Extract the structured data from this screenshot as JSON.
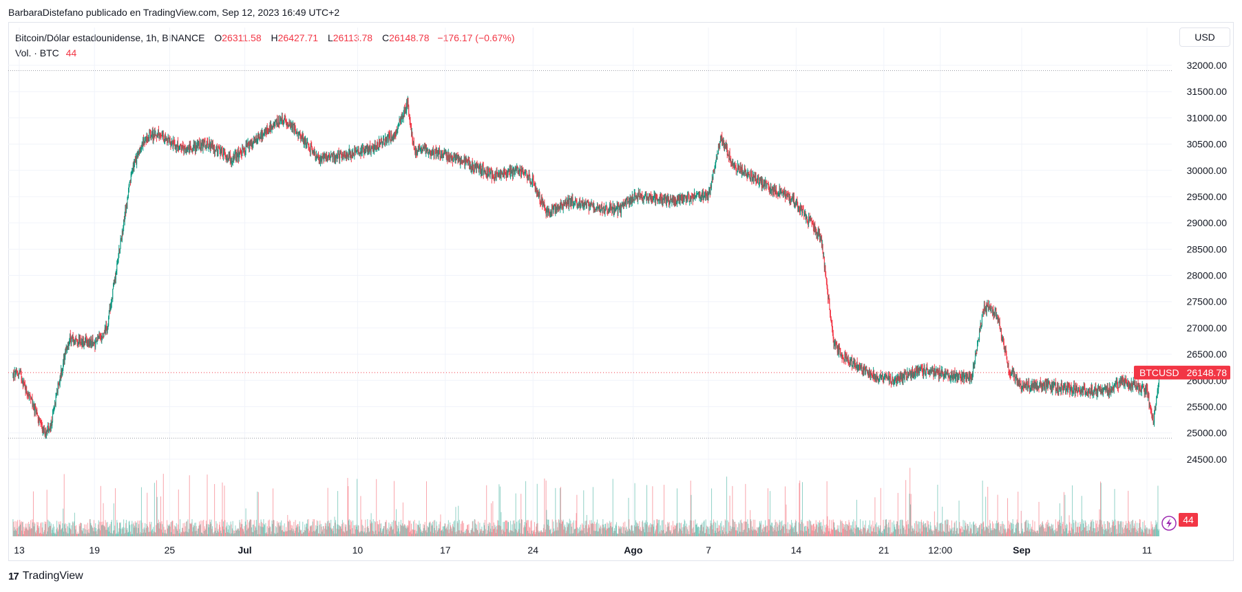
{
  "publisher_line": "BarbaraDistefano publicado en TradingView.com, Sep 12, 2023 16:49 UTC+2",
  "legend": {
    "symbol": "Bitcoin/Dólar estadounidense, 1h, BINANCE",
    "open_label": "O",
    "open": "26311.58",
    "high_label": "H",
    "high": "26427.71",
    "low_label": "L",
    "low": "26113.78",
    "close_label": "C",
    "close": "26148.78",
    "change": "−176.17 (−0.67%)",
    "volume_label": "Vol. · BTC",
    "volume": "44"
  },
  "currency_button": "USD",
  "price_badge": {
    "symbol": "BTCUSD",
    "price": "26148.78"
  },
  "volume_badge": "44",
  "footer_brand": "TradingView",
  "colors": {
    "up": "#089981",
    "down": "#f23645",
    "grid": "#f0f3fa",
    "text": "#131722"
  },
  "chart_data": {
    "type": "candlestick",
    "interval": "1h",
    "y_axis_ticks": [
      32000,
      31500,
      31000,
      30500,
      30000,
      29500,
      29000,
      28500,
      28000,
      27500,
      27000,
      26500,
      26000,
      25500,
      25000,
      24500
    ],
    "y_tick_labels": [
      "32000.00",
      "31500.00",
      "31000.00",
      "30500.00",
      "30000.00",
      "29500.00",
      "29000.00",
      "28500.00",
      "28000.00",
      "27500.00",
      "27000.00",
      "26500.00",
      "26000.00",
      "25500.00",
      "25000.00",
      "24500.00"
    ],
    "ylim": [
      24300,
      32200
    ],
    "x_tick_labels": [
      "13",
      "19",
      "25",
      "Jul",
      "10",
      "17",
      "24",
      "Ago",
      "7",
      "14",
      "21",
      "12:00",
      "Sep",
      "11"
    ],
    "x_tick_bold": [
      false,
      false,
      false,
      true,
      false,
      false,
      false,
      true,
      false,
      false,
      false,
      false,
      true,
      false
    ],
    "x_tick_dates": [
      "2023-06-13",
      "2023-06-19",
      "2023-06-25",
      "2023-07-01",
      "2023-07-10",
      "2023-07-17",
      "2023-07-24",
      "2023-08-01",
      "2023-08-07",
      "2023-08-14",
      "2023-08-21",
      "2023-08-25 12:00",
      "2023-09-01",
      "2023-09-11"
    ],
    "last_close": 26148.78,
    "path_dates": [
      "2023-06-10",
      "2023-06-12",
      "2023-06-13",
      "2023-06-15",
      "2023-06-15 12:00",
      "2023-06-16",
      "2023-06-17",
      "2023-06-19",
      "2023-06-20",
      "2023-06-21",
      "2023-06-22",
      "2023-06-23",
      "2023-06-24",
      "2023-06-26",
      "2023-06-28",
      "2023-06-30",
      "2023-07-02",
      "2023-07-04",
      "2023-07-06",
      "2023-07-07",
      "2023-07-09",
      "2023-07-11",
      "2023-07-13",
      "2023-07-14",
      "2023-07-14 12:00",
      "2023-07-17",
      "2023-07-19",
      "2023-07-21",
      "2023-07-23",
      "2023-07-24",
      "2023-07-25",
      "2023-07-27",
      "2023-07-29",
      "2023-07-31",
      "2023-08-01",
      "2023-08-02",
      "2023-08-04",
      "2023-08-06",
      "2023-08-07",
      "2023-08-08",
      "2023-08-09",
      "2023-08-11",
      "2023-08-14",
      "2023-08-16",
      "2023-08-17",
      "2023-08-18",
      "2023-08-20",
      "2023-08-22",
      "2023-08-24",
      "2023-08-26",
      "2023-08-28",
      "2023-08-29",
      "2023-08-30",
      "2023-08-31",
      "2023-09-01",
      "2023-09-03",
      "2023-09-06",
      "2023-09-08",
      "2023-09-09",
      "2023-09-10",
      "2023-09-11",
      "2023-09-11 12:00",
      "2023-09-12"
    ],
    "path_prices": [
      26100,
      26050,
      26150,
      25000,
      25100,
      25800,
      26800,
      26700,
      27000,
      28500,
      30000,
      30600,
      30700,
      30400,
      30500,
      30200,
      30600,
      31000,
      30500,
      30200,
      30300,
      30400,
      30700,
      31300,
      30400,
      30300,
      30100,
      29900,
      30000,
      29800,
      29200,
      29400,
      29300,
      29250,
      29500,
      29500,
      29400,
      29500,
      29500,
      30600,
      30100,
      29800,
      29400,
      28700,
      26700,
      26400,
      26100,
      26000,
      26200,
      26100,
      26050,
      27400,
      27300,
      26200,
      25900,
      25900,
      25800,
      25800,
      26000,
      25900,
      25800,
      25200,
      26148.78
    ],
    "volume_unit": "BTC",
    "last_volume": 44
  }
}
